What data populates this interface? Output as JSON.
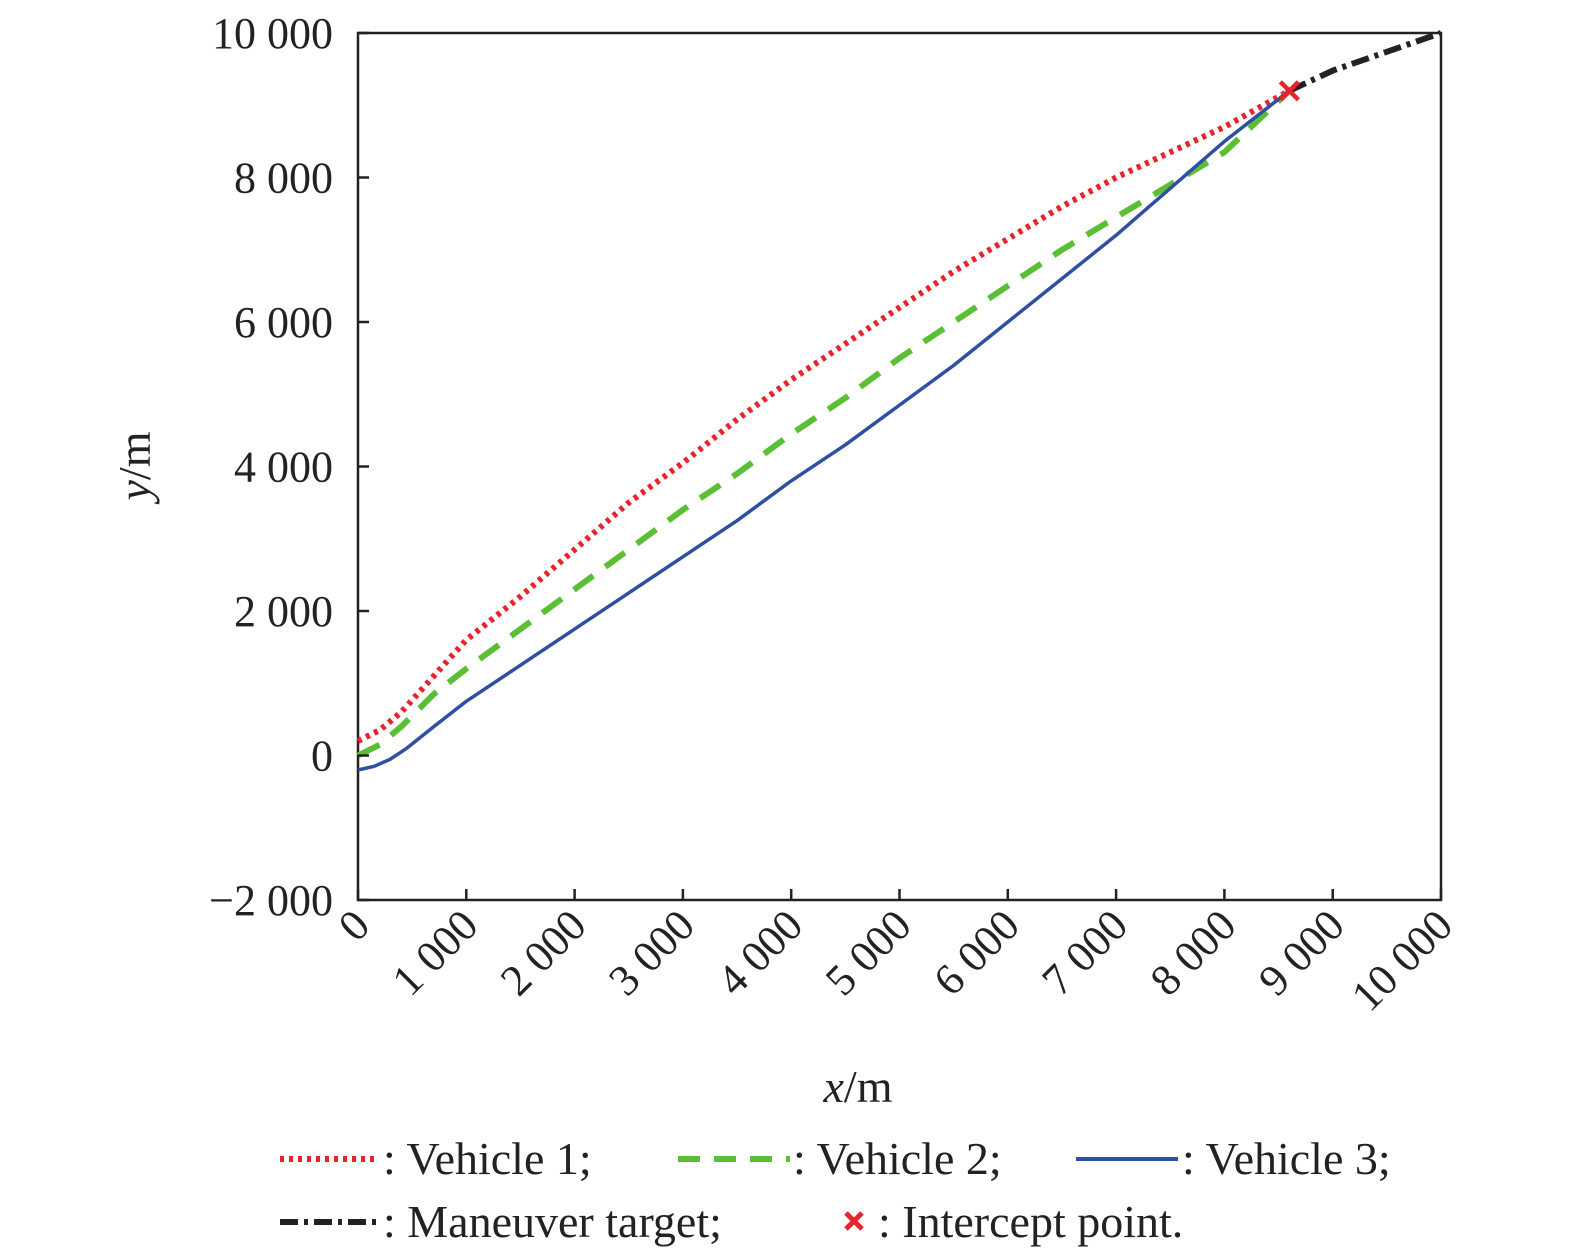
{
  "chart_data": {
    "type": "line",
    "xlabel_var": "x",
    "xlabel_unit": "/m",
    "ylabel_var": "y",
    "ylabel_unit": "/m",
    "xlim": [
      0,
      10000
    ],
    "ylim": [
      -2000,
      10000
    ],
    "x_ticks": [
      0,
      1000,
      2000,
      3000,
      4000,
      5000,
      6000,
      7000,
      8000,
      9000,
      10000
    ],
    "x_tick_labels": [
      "0",
      "1 000",
      "2 000",
      "3 000",
      "4 000",
      "5 000",
      "6 000",
      "7 000",
      "8 000",
      "9 000",
      "10 000"
    ],
    "y_ticks": [
      -2000,
      0,
      2000,
      4000,
      6000,
      8000,
      10000
    ],
    "y_tick_labels": [
      "−2 000",
      "0",
      "2 000",
      "4 000",
      "6 000",
      "8 000",
      "10 000"
    ],
    "grid": false,
    "series": [
      {
        "name": "Vehicle 1",
        "color": "#e8232a",
        "style": "dotted",
        "points": [
          [
            0,
            200
          ],
          [
            200,
            350
          ],
          [
            400,
            600
          ],
          [
            700,
            1100
          ],
          [
            1000,
            1600
          ],
          [
            1500,
            2200
          ],
          [
            2000,
            2850
          ],
          [
            2500,
            3500
          ],
          [
            3000,
            4050
          ],
          [
            3500,
            4650
          ],
          [
            4000,
            5200
          ],
          [
            4500,
            5700
          ],
          [
            5000,
            6200
          ],
          [
            5500,
            6700
          ],
          [
            6000,
            7150
          ],
          [
            6500,
            7600
          ],
          [
            7000,
            8000
          ],
          [
            7500,
            8350
          ],
          [
            8000,
            8700
          ],
          [
            8600,
            9200
          ]
        ]
      },
      {
        "name": "Vehicle 2",
        "color": "#5abf35",
        "style": "dashed",
        "points": [
          [
            0,
            0
          ],
          [
            200,
            150
          ],
          [
            400,
            400
          ],
          [
            700,
            850
          ],
          [
            1000,
            1200
          ],
          [
            1500,
            1750
          ],
          [
            2000,
            2300
          ],
          [
            2500,
            2850
          ],
          [
            3000,
            3400
          ],
          [
            3500,
            3900
          ],
          [
            4000,
            4450
          ],
          [
            4500,
            4950
          ],
          [
            5000,
            5500
          ],
          [
            5500,
            6000
          ],
          [
            6000,
            6500
          ],
          [
            6500,
            7000
          ],
          [
            7000,
            7450
          ],
          [
            7500,
            7900
          ],
          [
            8000,
            8350
          ],
          [
            8600,
            9200
          ]
        ]
      },
      {
        "name": "Vehicle 3",
        "color": "#2f4fa2",
        "style": "solid",
        "points": [
          [
            0,
            -200
          ],
          [
            150,
            -150
          ],
          [
            300,
            -50
          ],
          [
            450,
            100
          ],
          [
            700,
            400
          ],
          [
            1000,
            750
          ],
          [
            1500,
            1250
          ],
          [
            2000,
            1750
          ],
          [
            2500,
            2250
          ],
          [
            3000,
            2750
          ],
          [
            3500,
            3250
          ],
          [
            4000,
            3800
          ],
          [
            4500,
            4300
          ],
          [
            5000,
            4850
          ],
          [
            5500,
            5400
          ],
          [
            6000,
            6000
          ],
          [
            6500,
            6600
          ],
          [
            7000,
            7200
          ],
          [
            7500,
            7850
          ],
          [
            8000,
            8500
          ],
          [
            8600,
            9200
          ]
        ]
      },
      {
        "name": "Maneuver target",
        "color": "#222222",
        "style": "dashdot",
        "points": [
          [
            8600,
            9200
          ],
          [
            9000,
            9480
          ],
          [
            9500,
            9740
          ],
          [
            10000,
            10000
          ]
        ]
      }
    ],
    "marker": {
      "name": "Intercept point",
      "color": "#e8232a",
      "symbol": "x",
      "point": [
        8600,
        9200
      ]
    },
    "legend": {
      "placement": "bottom",
      "rows": [
        [
          {
            "text": ": Vehicle 1;",
            "series": "Vehicle 1"
          },
          {
            "text": ": Vehicle 2;",
            "series": "Vehicle 2"
          },
          {
            "text": ": Vehicle 3;",
            "series": "Vehicle 3"
          }
        ],
        [
          {
            "text": ": Maneuver target;",
            "series": "Maneuver target"
          },
          {
            "text": ": Intercept point.",
            "series": "Intercept point"
          }
        ]
      ]
    }
  }
}
